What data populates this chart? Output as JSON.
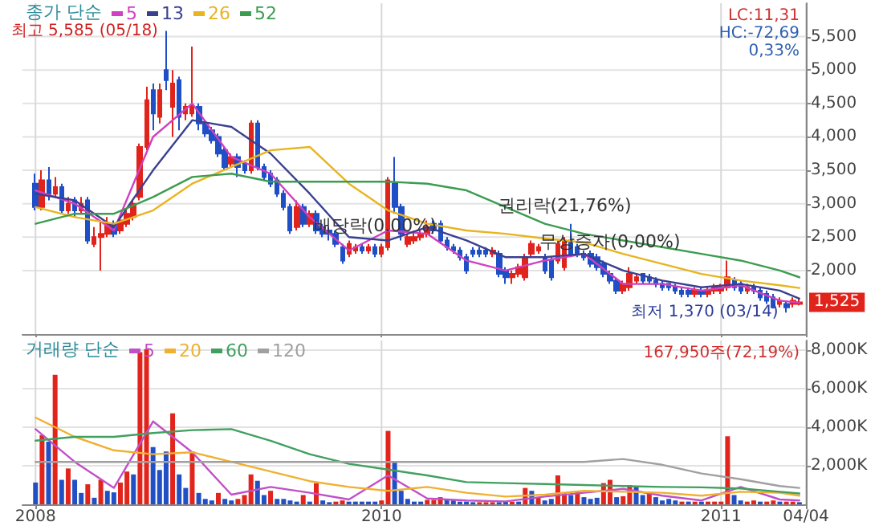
{
  "chart_data": [
    {
      "type": "candlestick",
      "legend": "top left",
      "legend_title": "종가 단순",
      "grid": true,
      "tick_labels": "y",
      "xlim": [
        "2008-12-15",
        "2011-04-04"
      ],
      "ylim": [
        1050,
        6000
      ],
      "xticks": [
        {
          "value": "2008-12-29",
          "label": null
        },
        {
          "value": "2010-01-04",
          "label": null
        },
        {
          "value": "2011-01-03",
          "label": null
        },
        {
          "value": "2011-04-04",
          "label": null
        }
      ],
      "yticks": [
        {
          "value": 2000,
          "label": "2,000"
        },
        {
          "value": 2500,
          "label": "2,500"
        },
        {
          "value": 3000,
          "label": "3,000"
        },
        {
          "value": 3500,
          "label": "3,500"
        },
        {
          "value": 4000,
          "label": "4,000"
        },
        {
          "value": 4500,
          "label": "4,500"
        },
        {
          "value": 5000,
          "label": "5,000"
        },
        {
          "value": 5500,
          "label": "5,500"
        }
      ],
      "x": [
        "2008-12-29",
        "2009-01-05",
        "2009-01-12",
        "2009-01-19",
        "2009-01-26",
        "2009-02-02",
        "2009-02-09",
        "2009-02-16",
        "2009-02-23",
        "2009-03-02",
        "2009-03-09",
        "2009-03-16",
        "2009-03-23",
        "2009-03-30",
        "2009-04-06",
        "2009-04-13",
        "2009-04-20",
        "2009-04-27",
        "2009-05-04",
        "2009-05-11",
        "2009-05-18",
        "2009-05-25",
        "2009-06-01",
        "2009-06-08",
        "2009-06-15",
        "2009-06-22",
        "2009-06-29",
        "2009-07-06",
        "2009-07-13",
        "2009-07-20",
        "2009-07-27",
        "2009-08-03",
        "2009-08-10",
        "2009-08-17",
        "2009-08-24",
        "2009-08-31",
        "2009-09-07",
        "2009-09-14",
        "2009-09-21",
        "2009-09-28",
        "2009-10-05",
        "2009-10-12",
        "2009-10-19",
        "2009-10-26",
        "2009-11-02",
        "2009-11-09",
        "2009-11-16",
        "2009-11-23",
        "2009-11-30",
        "2009-12-07",
        "2009-12-14",
        "2009-12-21",
        "2009-12-28",
        "2010-01-04",
        "2010-01-11",
        "2010-01-18",
        "2010-01-25",
        "2010-02-01",
        "2010-02-08",
        "2010-02-15",
        "2010-02-22",
        "2010-03-01",
        "2010-03-08",
        "2010-03-15",
        "2010-03-22",
        "2010-03-29",
        "2010-04-05",
        "2010-04-12",
        "2010-04-19",
        "2010-04-26",
        "2010-05-03",
        "2010-05-10",
        "2010-05-17",
        "2010-05-24",
        "2010-05-31",
        "2010-06-07",
        "2010-06-14",
        "2010-06-21",
        "2010-06-28",
        "2010-07-05",
        "2010-07-12",
        "2010-07-19",
        "2010-07-26",
        "2010-08-02",
        "2010-08-09",
        "2010-08-16",
        "2010-08-23",
        "2010-08-30",
        "2010-09-06",
        "2010-09-13",
        "2010-09-20",
        "2010-09-27",
        "2010-10-04",
        "2010-10-11",
        "2010-10-18",
        "2010-10-25",
        "2010-11-01",
        "2010-11-08",
        "2010-11-15",
        "2010-11-22",
        "2010-11-29",
        "2010-12-06",
        "2010-12-13",
        "2010-12-20",
        "2010-12-27",
        "2011-01-03",
        "2011-01-10",
        "2011-01-17",
        "2011-01-24",
        "2011-01-31",
        "2011-02-07",
        "2011-02-14",
        "2011-02-21",
        "2011-02-28",
        "2011-03-07",
        "2011-03-14",
        "2011-03-21",
        "2011-03-28"
      ],
      "ohlc": [
        [
          3300,
          3450,
          2900,
          2950
        ],
        [
          2950,
          3500,
          2900,
          3350
        ],
        [
          3350,
          3550,
          3050,
          3150
        ],
        [
          3150,
          3400,
          3100,
          3250
        ],
        [
          3250,
          3300,
          2850,
          2900
        ],
        [
          2900,
          3100,
          2850,
          3000
        ],
        [
          3050,
          3100,
          2800,
          2900
        ],
        [
          2900,
          3100,
          2850,
          3000
        ],
        [
          3050,
          3100,
          2400,
          2450
        ],
        [
          2400,
          2650,
          2350,
          2500
        ],
        [
          2500,
          2750,
          2000,
          2550
        ],
        [
          2550,
          2800,
          2500,
          2700
        ],
        [
          2700,
          2750,
          2500,
          2550
        ],
        [
          2600,
          2800,
          2550,
          2750
        ],
        [
          2700,
          2900,
          2650,
          2850
        ],
        [
          2800,
          3050,
          2750,
          3000
        ],
        [
          3100,
          3900,
          3050,
          3850
        ],
        [
          3850,
          4750,
          3800,
          4550
        ],
        [
          4700,
          4800,
          4100,
          4350
        ],
        [
          4300,
          4800,
          4200,
          4700
        ],
        [
          5000,
          5585,
          4700,
          4850
        ],
        [
          4450,
          5000,
          4000,
          4800
        ],
        [
          4850,
          4900,
          4100,
          4300
        ],
        [
          4350,
          4500,
          4250,
          4450
        ],
        [
          4350,
          5350,
          4300,
          4450
        ],
        [
          4450,
          4500,
          4100,
          4200
        ],
        [
          4200,
          4250,
          4000,
          4050
        ],
        [
          4100,
          4150,
          3900,
          3950
        ],
        [
          4000,
          4050,
          3700,
          3750
        ],
        [
          3800,
          3850,
          3500,
          3550
        ],
        [
          3600,
          3750,
          3550,
          3700
        ],
        [
          3700,
          3750,
          3400,
          3550
        ],
        [
          3600,
          3650,
          3450,
          3500
        ],
        [
          3500,
          4250,
          3450,
          4200
        ],
        [
          4200,
          4250,
          3500,
          3550
        ],
        [
          3550,
          3600,
          3350,
          3400
        ],
        [
          3450,
          3500,
          3250,
          3300
        ],
        [
          3350,
          3400,
          3100,
          3150
        ],
        [
          3150,
          3200,
          2900,
          2950
        ],
        [
          2950,
          3000,
          2550,
          2600
        ],
        [
          2650,
          3050,
          2600,
          2950
        ],
        [
          2950,
          3000,
          2650,
          2700
        ],
        [
          2700,
          2900,
          2650,
          2850
        ],
        [
          2850,
          2900,
          2550,
          2600
        ],
        [
          2650,
          2700,
          2500,
          2550
        ],
        [
          2600,
          2650,
          2450,
          2550
        ],
        [
          2550,
          2600,
          2350,
          2400
        ],
        [
          2350,
          2400,
          2100,
          2150
        ],
        [
          2250,
          2450,
          2200,
          2400
        ],
        [
          2300,
          2400,
          2250,
          2350
        ],
        [
          2350,
          2400,
          2250,
          2300
        ],
        [
          2300,
          2400,
          2250,
          2350
        ],
        [
          2350,
          2400,
          2200,
          2250
        ],
        [
          2250,
          2400,
          2200,
          2350
        ],
        [
          2350,
          3400,
          2300,
          3350
        ],
        [
          3300,
          3700,
          2850,
          2950
        ],
        [
          2950,
          3000,
          2450,
          2550
        ],
        [
          2400,
          2550,
          2350,
          2500
        ],
        [
          2450,
          2600,
          2400,
          2500
        ],
        [
          2500,
          2600,
          2450,
          2550
        ],
        [
          2550,
          2750,
          2500,
          2650
        ],
        [
          2700,
          2750,
          2550,
          2600
        ],
        [
          2700,
          2750,
          2400,
          2450
        ],
        [
          2450,
          2500,
          2300,
          2350
        ],
        [
          2350,
          2400,
          2250,
          2300
        ],
        [
          2300,
          2350,
          2150,
          2200
        ],
        [
          2200,
          2250,
          1950,
          2000
        ],
        [
          2300,
          2350,
          2200,
          2250
        ],
        [
          2300,
          2350,
          2200,
          2250
        ],
        [
          2300,
          2350,
          2200,
          2250
        ],
        [
          2250,
          2350,
          2200,
          2300
        ],
        [
          2250,
          2300,
          1900,
          1950
        ],
        [
          2000,
          2050,
          1800,
          1900
        ],
        [
          1900,
          2000,
          1800,
          1950
        ],
        [
          1950,
          2100,
          1900,
          2050
        ],
        [
          1900,
          2250,
          1850,
          2200
        ],
        [
          2250,
          2450,
          2200,
          2400
        ],
        [
          2300,
          2400,
          2250,
          2350
        ],
        [
          2200,
          2250,
          1950,
          2000
        ],
        [
          2150,
          2200,
          1850,
          1900
        ],
        [
          2150,
          2450,
          2100,
          2400
        ],
        [
          2050,
          2500,
          2000,
          2450
        ],
        [
          2450,
          2700,
          2200,
          2250
        ],
        [
          2350,
          2400,
          2200,
          2250
        ],
        [
          2250,
          2300,
          2150,
          2200
        ],
        [
          2250,
          2300,
          2050,
          2100
        ],
        [
          2200,
          2250,
          2000,
          2050
        ],
        [
          2100,
          2150,
          1900,
          1950
        ],
        [
          1950,
          2000,
          1800,
          1850
        ],
        [
          1850,
          1900,
          1650,
          1700
        ],
        [
          1700,
          1850,
          1650,
          1800
        ],
        [
          1750,
          2050,
          1700,
          1950
        ],
        [
          1850,
          1950,
          1800,
          1900
        ],
        [
          1950,
          1950,
          1800,
          1850
        ],
        [
          1900,
          1950,
          1800,
          1850
        ],
        [
          1850,
          1900,
          1750,
          1800
        ],
        [
          1800,
          1850,
          1700,
          1750
        ],
        [
          1800,
          1800,
          1700,
          1750
        ],
        [
          1750,
          1800,
          1650,
          1700
        ],
        [
          1700,
          1750,
          1600,
          1650
        ],
        [
          1700,
          1750,
          1600,
          1650
        ],
        [
          1650,
          1750,
          1600,
          1700
        ],
        [
          1700,
          1750,
          1600,
          1650
        ],
        [
          1650,
          1750,
          1600,
          1700
        ],
        [
          1700,
          1800,
          1650,
          1750
        ],
        [
          1700,
          1800,
          1650,
          1750
        ],
        [
          1750,
          2150,
          1700,
          1900
        ],
        [
          1850,
          1900,
          1700,
          1750
        ],
        [
          1800,
          1850,
          1650,
          1700
        ],
        [
          1700,
          1800,
          1650,
          1750
        ],
        [
          1750,
          1800,
          1650,
          1700
        ],
        [
          1700,
          1750,
          1550,
          1600
        ],
        [
          1650,
          1700,
          1500,
          1550
        ],
        [
          1600,
          1650,
          1430,
          1450
        ],
        [
          1500,
          1600,
          1450,
          1550
        ],
        [
          1500,
          1550,
          1370,
          1450
        ],
        [
          1500,
          1600,
          1450,
          1550
        ],
        [
          1500,
          1580,
          1480,
          1525
        ]
      ],
      "series": [
        {
          "type": "line",
          "name": "5",
          "color": "#d040c0",
          "x": [
            "2008-12-29",
            "2009-02-09",
            "2009-03-23",
            "2009-05-04",
            "2009-06-15",
            "2009-07-27",
            "2009-09-07",
            "2009-10-19",
            "2009-11-30",
            "2010-01-11",
            "2010-02-22",
            "2010-04-05",
            "2010-05-17",
            "2010-06-28",
            "2010-08-09",
            "2010-09-20",
            "2010-11-01",
            "2010-12-13",
            "2011-01-24",
            "2011-03-07",
            "2011-03-28"
          ],
          "values": [
            3200,
            3000,
            2600,
            4000,
            4500,
            3700,
            3450,
            2800,
            2300,
            2600,
            2550,
            2150,
            2000,
            2150,
            2250,
            1800,
            1800,
            1700,
            1780,
            1550,
            1520
          ]
        },
        {
          "type": "line",
          "name": "13",
          "color": "#3a4090",
          "x": [
            "2008-12-29",
            "2009-02-09",
            "2009-03-23",
            "2009-05-04",
            "2009-06-15",
            "2009-07-27",
            "2009-09-07",
            "2009-10-19",
            "2009-11-30",
            "2010-01-11",
            "2010-02-22",
            "2010-04-05",
            "2010-05-17",
            "2010-06-28",
            "2010-08-09",
            "2010-09-20",
            "2010-11-01",
            "2010-12-13",
            "2011-01-24",
            "2011-03-07",
            "2011-03-28"
          ],
          "values": [
            3150,
            3050,
            2650,
            3500,
            4250,
            4150,
            3750,
            3150,
            2500,
            2450,
            2650,
            2450,
            2200,
            2200,
            2250,
            2000,
            1850,
            1750,
            1800,
            1700,
            1580
          ]
        },
        {
          "type": "line",
          "name": "26",
          "color": "#e8b420",
          "x": [
            "2008-12-29",
            "2009-02-09",
            "2009-03-23",
            "2009-05-04",
            "2009-06-15",
            "2009-07-27",
            "2009-09-07",
            "2009-10-19",
            "2009-11-30",
            "2010-01-11",
            "2010-02-22",
            "2010-04-05",
            "2010-05-17",
            "2010-06-28",
            "2010-08-09",
            "2010-09-20",
            "2010-11-01",
            "2010-12-13",
            "2011-01-24",
            "2011-03-07",
            "2011-03-28"
          ],
          "values": [
            2950,
            2800,
            2700,
            2900,
            3300,
            3550,
            3800,
            3850,
            3300,
            2900,
            2700,
            2600,
            2550,
            2480,
            2420,
            2250,
            2100,
            1950,
            1850,
            1780,
            1740
          ]
        },
        {
          "type": "line",
          "name": "52",
          "color": "#3c9c50",
          "x": [
            "2008-12-29",
            "2009-02-09",
            "2009-03-23",
            "2009-05-04",
            "2009-06-15",
            "2009-07-27",
            "2009-09-07",
            "2009-10-19",
            "2009-11-30",
            "2010-01-11",
            "2010-02-22",
            "2010-04-05",
            "2010-05-17",
            "2010-06-28",
            "2010-08-09",
            "2010-09-20",
            "2010-11-01",
            "2010-12-13",
            "2011-01-24",
            "2011-03-07",
            "2011-03-28"
          ],
          "values": [
            2700,
            2850,
            2850,
            3100,
            3400,
            3450,
            3330,
            3330,
            3330,
            3330,
            3300,
            3200,
            2950,
            2700,
            2550,
            2450,
            2350,
            2250,
            2150,
            2000,
            1900
          ]
        }
      ],
      "annotations": [
        {
          "text": "최고 5,585 (05/18)",
          "x": "2009-05-18",
          "y": 5585
        },
        {
          "text": "최저 1,370 (03/14)",
          "x": "2011-03-14",
          "y": 1370
        },
        {
          "text": "배당락(0.00%)",
          "x": "2009-12-28",
          "y": 2400
        },
        {
          "text": "권리락(21,76%)",
          "x": "2010-07-19",
          "y": 2700
        },
        {
          "text": "무상증자(0,00%)",
          "x": "2010-09-06",
          "y": 2150
        },
        {
          "text": "1,525",
          "x": "2011-04-04",
          "y": 1525
        },
        "LC:11,31",
        "HC:-72,69",
        "0,33%"
      ]
    },
    {
      "type": "bar",
      "legend": "top left",
      "legend_title": "거래량 단순",
      "grid": true,
      "xlim": [
        "2008-12-15",
        "2011-04-04"
      ],
      "ylim": [
        0,
        8500
      ],
      "xticks": [
        {
          "value": "2008-12-29",
          "label": "2008"
        },
        {
          "value": "2010-01-04",
          "label": "2010"
        },
        {
          "value": "2011-01-03",
          "label": "2011"
        },
        {
          "value": "2011-04-04",
          "label": "04/04"
        }
      ],
      "yticks": [
        {
          "value": 2000,
          "label": "2,000K"
        },
        {
          "value": 4000,
          "label": "4,000K"
        },
        {
          "value": 6000,
          "label": "6,000K"
        },
        {
          "value": 8000,
          "label": "8,000K"
        }
      ],
      "x": [
        "2008-12-29",
        "2009-01-05",
        "2009-01-12",
        "2009-01-19",
        "2009-01-26",
        "2009-02-02",
        "2009-02-09",
        "2009-02-16",
        "2009-02-23",
        "2009-03-02",
        "2009-03-09",
        "2009-03-16",
        "2009-03-23",
        "2009-03-30",
        "2009-04-06",
        "2009-04-13",
        "2009-04-20",
        "2009-04-27",
        "2009-05-04",
        "2009-05-11",
        "2009-05-18",
        "2009-05-25",
        "2009-06-01",
        "2009-06-08",
        "2009-06-15",
        "2009-06-22",
        "2009-06-29",
        "2009-07-06",
        "2009-07-13",
        "2009-07-20",
        "2009-07-27",
        "2009-08-03",
        "2009-08-10",
        "2009-08-17",
        "2009-08-24",
        "2009-08-31",
        "2009-09-07",
        "2009-09-14",
        "2009-09-21",
        "2009-09-28",
        "2009-10-05",
        "2009-10-12",
        "2009-10-19",
        "2009-10-26",
        "2009-11-02",
        "2009-11-09",
        "2009-11-16",
        "2009-11-23",
        "2009-11-30",
        "2009-12-07",
        "2009-12-14",
        "2009-12-21",
        "2009-12-28",
        "2010-01-04",
        "2010-01-11",
        "2010-01-18",
        "2010-01-25",
        "2010-02-01",
        "2010-02-08",
        "2010-02-15",
        "2010-02-22",
        "2010-03-01",
        "2010-03-08",
        "2010-03-15",
        "2010-03-22",
        "2010-03-29",
        "2010-04-05",
        "2010-04-12",
        "2010-04-19",
        "2010-04-26",
        "2010-05-03",
        "2010-05-10",
        "2010-05-17",
        "2010-05-24",
        "2010-05-31",
        "2010-06-07",
        "2010-06-14",
        "2010-06-21",
        "2010-06-28",
        "2010-07-05",
        "2010-07-12",
        "2010-07-19",
        "2010-07-26",
        "2010-08-02",
        "2010-08-09",
        "2010-08-16",
        "2010-08-23",
        "2010-08-30",
        "2010-09-06",
        "2010-09-13",
        "2010-09-20",
        "2010-09-27",
        "2010-10-04",
        "2010-10-11",
        "2010-10-18",
        "2010-10-25",
        "2010-11-01",
        "2010-11-08",
        "2010-11-15",
        "2010-11-22",
        "2010-11-29",
        "2010-12-06",
        "2010-12-13",
        "2010-12-20",
        "2010-12-27",
        "2011-01-03",
        "2011-01-10",
        "2011-01-17",
        "2011-01-24",
        "2011-01-31",
        "2011-02-07",
        "2011-02-14",
        "2011-02-21",
        "2011-02-28",
        "2011-03-07",
        "2011-03-14",
        "2011-03-21",
        "2011-03-28"
      ],
      "values": [
        1130,
        3590,
        3250,
        6720,
        1270,
        1860,
        1270,
        590,
        1040,
        340,
        1270,
        700,
        620,
        1130,
        1700,
        1550,
        7900,
        8050,
        2970,
        1780,
        2740,
        4720,
        1550,
        850,
        2740,
        590,
        280,
        200,
        590,
        280,
        200,
        280,
        480,
        1550,
        1220,
        480,
        700,
        280,
        280,
        200,
        140,
        480,
        140,
        1100,
        200,
        110,
        140,
        200,
        140,
        140,
        140,
        140,
        140,
        200,
        3810,
        2180,
        700,
        280,
        140,
        140,
        230,
        230,
        370,
        230,
        200,
        140,
        140,
        110,
        110,
        110,
        110,
        110,
        140,
        140,
        140,
        850,
        700,
        370,
        200,
        280,
        1500,
        620,
        480,
        700,
        370,
        280,
        340,
        1100,
        1270,
        370,
        420,
        990,
        900,
        480,
        560,
        370,
        200,
        280,
        200,
        140,
        140,
        140,
        140,
        140,
        140,
        140,
        3530,
        480,
        200,
        140,
        200,
        140,
        140,
        200,
        140,
        140,
        140,
        110
      ],
      "colors": [
        "#2150c4",
        "#e1241c",
        "#2150c4",
        "#e1241c",
        "#2150c4",
        "#e1241c",
        "#2150c4",
        "#2150c4",
        "#e1241c",
        "#2150c4",
        "#e1241c",
        "#2150c4",
        "#2150c4",
        "#e1241c",
        "#e1241c",
        "#2150c4",
        "#e1241c",
        "#e1241c",
        "#2150c4",
        "#2150c4",
        "#2150c4",
        "#e1241c",
        "#2150c4",
        "#2150c4",
        "#e1241c",
        "#2150c4",
        "#2150c4",
        "#2150c4",
        "#e1241c",
        "#2150c4",
        "#2150c4",
        "#e1241c",
        "#e1241c",
        "#e1241c",
        "#2150c4",
        "#2150c4",
        "#e1241c",
        "#2150c4",
        "#2150c4",
        "#2150c4",
        "#2150c4",
        "#e1241c",
        "#2150c4",
        "#e1241c",
        "#2150c4",
        "#2150c4",
        "#e1241c",
        "#e1241c",
        "#2150c4",
        "#2150c4",
        "#2150c4",
        "#2150c4",
        "#2150c4",
        "#e1241c",
        "#e1241c",
        "#2150c4",
        "#2150c4",
        "#2150c4",
        "#2150c4",
        "#2150c4",
        "#e1241c",
        "#e1241c",
        "#e1241c",
        "#2150c4",
        "#2150c4",
        "#2150c4",
        "#2150c4",
        "#2150c4",
        "#e1241c",
        "#e1241c",
        "#e1241c",
        "#2150c4",
        "#2150c4",
        "#e1241c",
        "#2150c4",
        "#e1241c",
        "#2150c4",
        "#e1241c",
        "#2150c4",
        "#2150c4",
        "#e1241c",
        "#e1241c",
        "#2150c4",
        "#e1241c",
        "#2150c4",
        "#2150c4",
        "#2150c4",
        "#e1241c",
        "#e1241c",
        "#2150c4",
        "#e1241c",
        "#e1241c",
        "#2150c4",
        "#2150c4",
        "#e1241c",
        "#2150c4",
        "#2150c4",
        "#2150c4",
        "#2150c4",
        "#e1241c",
        "#2150c4",
        "#e1241c",
        "#2150c4",
        "#e1241c",
        "#e1241c",
        "#e1241c",
        "#e1241c",
        "#2150c4",
        "#2150c4",
        "#e1241c",
        "#e1241c",
        "#2150c4",
        "#e1241c",
        "#e1241c",
        "#2150c4",
        "#e1241c",
        "#e1241c",
        "#2150c4"
      ],
      "series": [
        {
          "type": "line",
          "name": "5",
          "color": "#c050c8",
          "x": [
            "2008-12-29",
            "2009-02-09",
            "2009-03-23",
            "2009-05-04",
            "2009-06-15",
            "2009-07-27",
            "2009-09-07",
            "2009-10-19",
            "2009-11-30",
            "2010-01-11",
            "2010-02-22",
            "2010-04-05",
            "2010-05-17",
            "2010-06-28",
            "2010-08-09",
            "2010-09-20",
            "2010-11-01",
            "2010-12-13",
            "2011-01-24",
            "2011-03-07",
            "2011-03-28"
          ],
          "values": [
            3900,
            2200,
            850,
            4300,
            2700,
            500,
            900,
            600,
            250,
            1500,
            300,
            200,
            150,
            400,
            600,
            800,
            450,
            200,
            900,
            250,
            200
          ]
        },
        {
          "type": "line",
          "name": "20",
          "color": "#f0b030",
          "x": [
            "2008-12-29",
            "2009-02-09",
            "2009-03-23",
            "2009-05-04",
            "2009-06-15",
            "2009-07-27",
            "2009-09-07",
            "2009-10-19",
            "2009-11-30",
            "2010-01-11",
            "2010-02-22",
            "2010-04-05",
            "2010-05-17",
            "2010-06-28",
            "2010-08-09",
            "2010-09-20",
            "2010-11-01",
            "2010-12-13",
            "2011-01-24",
            "2011-03-07",
            "2011-03-28"
          ],
          "values": [
            4500,
            3500,
            2800,
            2600,
            2700,
            2200,
            1700,
            1200,
            900,
            700,
            900,
            600,
            400,
            500,
            700,
            650,
            600,
            450,
            650,
            600,
            450
          ]
        },
        {
          "type": "line",
          "name": "60",
          "color": "#40a060",
          "x": [
            "2008-12-29",
            "2009-02-09",
            "2009-03-23",
            "2009-05-04",
            "2009-06-15",
            "2009-07-27",
            "2009-09-07",
            "2009-10-19",
            "2009-11-30",
            "2010-01-11",
            "2010-02-22",
            "2010-04-05",
            "2010-05-17",
            "2010-06-28",
            "2010-08-09",
            "2010-09-20",
            "2010-11-01",
            "2010-12-13",
            "2011-01-24",
            "2011-03-07",
            "2011-03-28"
          ],
          "values": [
            3300,
            3500,
            3500,
            3700,
            3850,
            3900,
            3300,
            2600,
            2100,
            1800,
            1500,
            1150,
            1100,
            1050,
            1000,
            950,
            900,
            880,
            820,
            650,
            560
          ]
        },
        {
          "type": "line",
          "name": "120",
          "color": "#a0a0a0",
          "x": [
            "2008-12-29",
            "2009-02-09",
            "2009-03-23",
            "2009-05-04",
            "2009-06-15",
            "2009-07-27",
            "2009-09-07",
            "2009-10-19",
            "2009-11-30",
            "2010-01-11",
            "2010-02-22",
            "2010-04-05",
            "2010-05-17",
            "2010-06-28",
            "2010-08-09",
            "2010-09-20",
            "2010-11-01",
            "2010-12-13",
            "2011-01-24",
            "2011-03-07",
            "2011-03-28"
          ],
          "values": [
            2200,
            2200,
            2200,
            2200,
            2200,
            2200,
            2200,
            2200,
            2200,
            2200,
            2200,
            2200,
            2200,
            2200,
            2200,
            2350,
            2050,
            1600,
            1300,
            950,
            850
          ]
        }
      ],
      "annotations": [
        "167,950주(72,19%)"
      ]
    }
  ]
}
